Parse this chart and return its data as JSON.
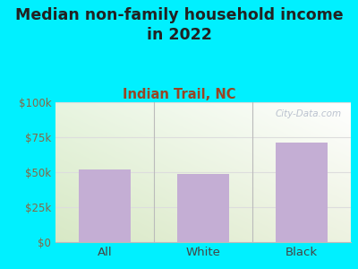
{
  "title": "Median non-family household income\nin 2022",
  "subtitle": "Indian Trail, NC",
  "categories": [
    "All",
    "White",
    "Black"
  ],
  "values": [
    52000,
    49000,
    71000
  ],
  "bar_color": "#c4aed4",
  "title_fontsize": 12.5,
  "subtitle_fontsize": 10.5,
  "subtitle_color": "#994422",
  "title_color": "#222222",
  "background_color": "#00f0ff",
  "plot_bg_top_left": "#e8f5e0",
  "plot_bg_top_right": "#f8f8f8",
  "plot_bg_bottom_left": "#d8f0d0",
  "plot_bg_bottom_right": "#f0f0f0",
  "ylim": [
    0,
    100000
  ],
  "yticks": [
    0,
    25000,
    50000,
    75000,
    100000
  ],
  "ytick_labels": [
    "$0",
    "$25k",
    "$50k",
    "$75k",
    "$100k"
  ],
  "tick_color": "#886644",
  "watermark": "City-Data.com",
  "xlabel_color": "#444444",
  "grid_color": "#dddddd"
}
